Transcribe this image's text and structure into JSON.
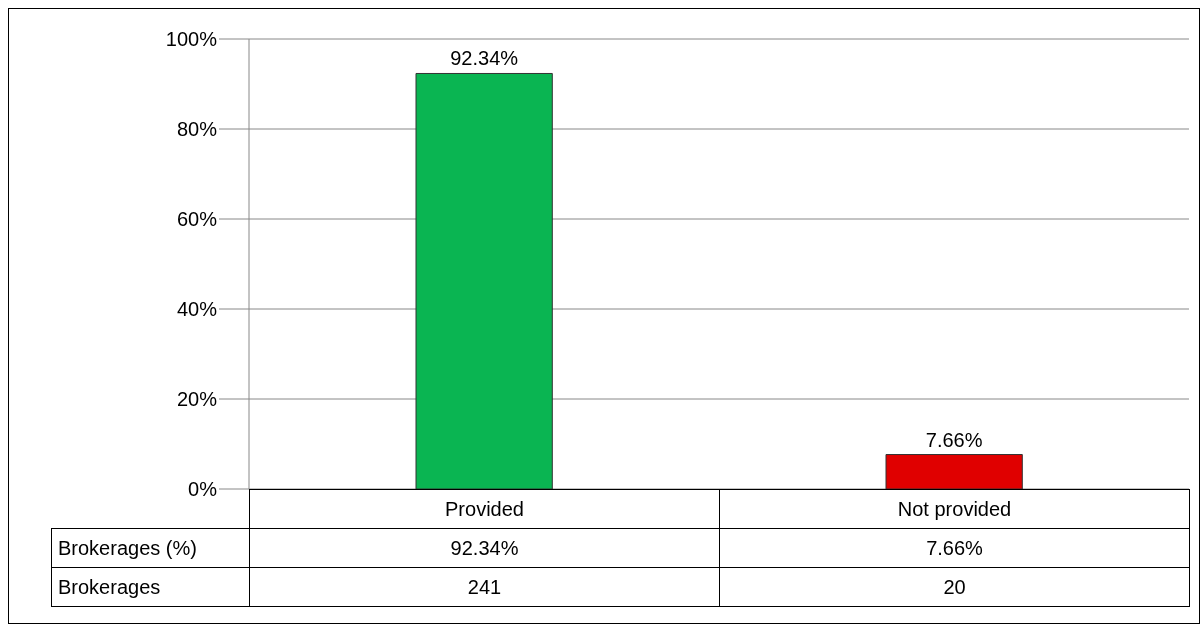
{
  "chart_data": {
    "type": "bar",
    "categories": [
      "Provided",
      "Not provided"
    ],
    "series": [
      {
        "name": "Brokerages (%)",
        "colors": [
          "#0ab552",
          "#e00000"
        ],
        "values": [
          92.34,
          7.66
        ],
        "value_labels": [
          "92.34%",
          "7.66%"
        ]
      }
    ],
    "ylim": [
      0,
      100
    ],
    "yticks": [
      {
        "value": 0,
        "label": "0%"
      },
      {
        "value": 20,
        "label": "20%"
      },
      {
        "value": 40,
        "label": "40%"
      },
      {
        "value": 60,
        "label": "60%"
      },
      {
        "value": 80,
        "label": "80%"
      },
      {
        "value": 100,
        "label": "100%"
      }
    ],
    "grid": "y",
    "annotations": [
      "Brokerages",
      "241",
      "20"
    ]
  }
}
